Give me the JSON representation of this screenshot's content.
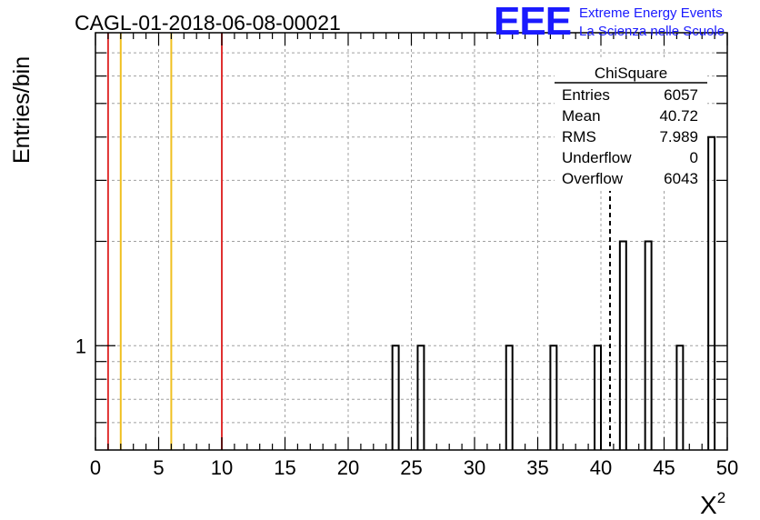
{
  "title": "CAGL-01-2018-06-08-00021",
  "logo": {
    "text": "EEE",
    "line1": "Extreme Energy Events",
    "line2": "La Scienza nelle Scuole",
    "color": "#1a1aff"
  },
  "stats_box": {
    "title": "ChiSquare",
    "rows": [
      {
        "label": "Entries",
        "value": "6057"
      },
      {
        "label": "Mean",
        "value": "40.72"
      },
      {
        "label": "RMS",
        "value": "7.989"
      },
      {
        "label": "Underflow",
        "value": "0"
      },
      {
        "label": "Overflow",
        "value": "6043"
      }
    ]
  },
  "chart_data": {
    "type": "bar",
    "xlabel": "X",
    "xlabel_sup": "2",
    "ylabel": "Entries/bin",
    "xlim": [
      0,
      50
    ],
    "ylim": [
      0.5,
      8
    ],
    "log_y": true,
    "x_ticks": [
      "0",
      "5",
      "10",
      "15",
      "20",
      "25",
      "30",
      "35",
      "40",
      "45",
      "50"
    ],
    "y_tick_labels": [
      {
        "value": 1,
        "label": "1"
      }
    ],
    "grid": true,
    "bin_width": 0.5,
    "bins": [
      {
        "x": 23.5,
        "count": 1
      },
      {
        "x": 25.5,
        "count": 1
      },
      {
        "x": 32.5,
        "count": 1
      },
      {
        "x": 36.0,
        "count": 1
      },
      {
        "x": 39.5,
        "count": 1
      },
      {
        "x": 41.5,
        "count": 2
      },
      {
        "x": 43.5,
        "count": 2
      },
      {
        "x": 46.0,
        "count": 1
      },
      {
        "x": 48.5,
        "count": 4
      }
    ],
    "mean_line": 40.72,
    "vertical_lines": [
      {
        "x": 1,
        "color": "#e03030"
      },
      {
        "x": 2,
        "color": "#f0c020"
      },
      {
        "x": 6,
        "color": "#f0c020"
      },
      {
        "x": 10,
        "color": "#e03030"
      }
    ]
  }
}
